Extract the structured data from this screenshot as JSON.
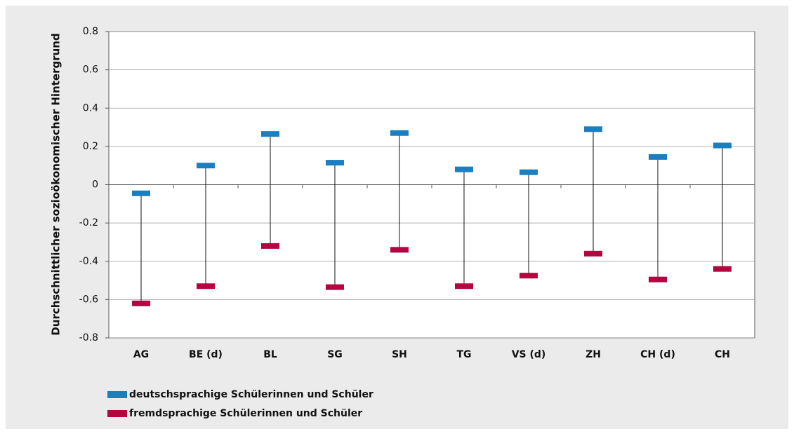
{
  "chart_data": {
    "type": "range_markers",
    "y_label": "Durchschnittlicher sozioökonomischer Hintergrund",
    "categories": [
      "AG",
      "BE (d)",
      "BL",
      "SG",
      "SH",
      "TG",
      "VS (d)",
      "ZH",
      "CH (d)",
      "CH"
    ],
    "series": [
      {
        "name": "deutschsprachige Schülerinnen und Schüler",
        "color": "#1a7fc1",
        "values": [
          -0.045,
          0.1,
          0.265,
          0.115,
          0.27,
          0.08,
          0.065,
          0.29,
          0.145,
          0.205
        ]
      },
      {
        "name": "fremdsprachige Schülerinnen und Schüler",
        "color": "#b5053f",
        "values": [
          -0.62,
          -0.53,
          -0.32,
          -0.535,
          -0.34,
          -0.53,
          -0.475,
          -0.36,
          -0.495,
          -0.44
        ]
      }
    ],
    "ylim": [
      -0.8,
      0.8
    ],
    "yticks": [
      -0.8,
      -0.6,
      -0.4,
      -0.2,
      0,
      0.2,
      0.4,
      0.6,
      0.8
    ],
    "grid": true,
    "legend": "bottom-left"
  }
}
